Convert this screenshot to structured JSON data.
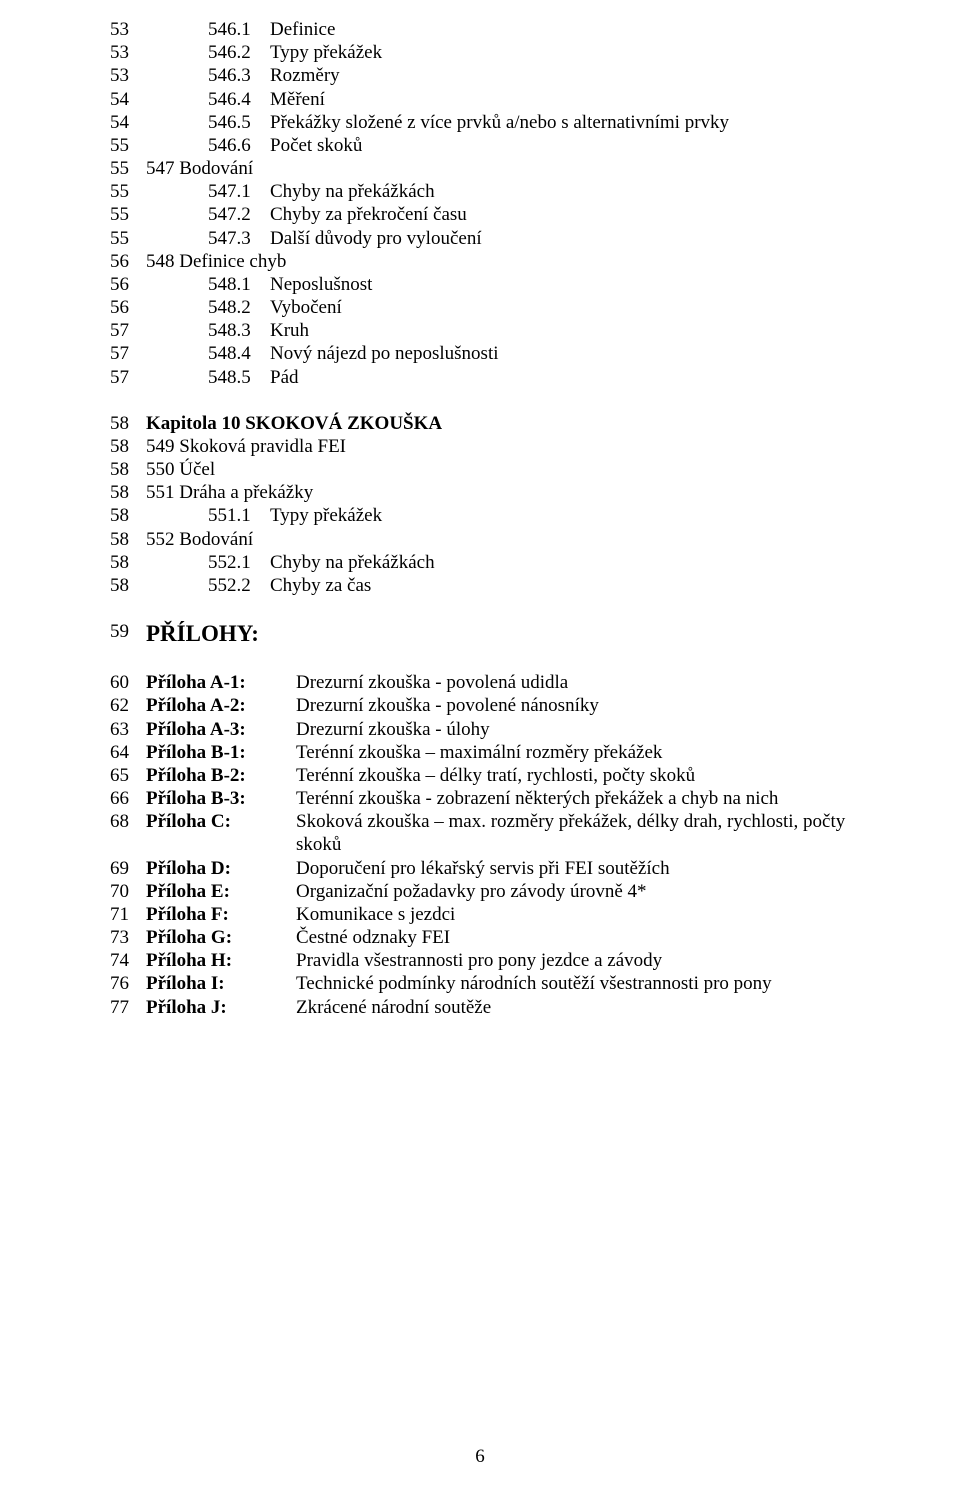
{
  "font": {
    "family": "Times New Roman",
    "size_pt": 14,
    "color": "#000000"
  },
  "background_color": "#ffffff",
  "section1": [
    {
      "pg": "53",
      "num": "546.1",
      "txt": "Definice"
    },
    {
      "pg": "53",
      "num": "546.2",
      "txt": "Typy překážek"
    },
    {
      "pg": "53",
      "num": "546.3",
      "txt": "Rozměry"
    },
    {
      "pg": "54",
      "num": "546.4",
      "txt": "Měření"
    },
    {
      "pg": "54",
      "num": "546.5",
      "txt": "Překážky složené z více prvků a/nebo s alternativními prvky"
    },
    {
      "pg": "55",
      "num": "546.6",
      "txt": "Počet skoků"
    },
    {
      "pg": "55",
      "num": "",
      "txt": "547 Bodování"
    },
    {
      "pg": "55",
      "num": "547.1",
      "txt": "Chyby na překážkách"
    },
    {
      "pg": "55",
      "num": "547.2",
      "txt": "Chyby za překročení času"
    },
    {
      "pg": "55",
      "num": "547.3",
      "txt": "Další důvody pro vyloučení"
    },
    {
      "pg": "56",
      "num": "",
      "txt": "548 Definice chyb"
    },
    {
      "pg": "56",
      "num": "548.1",
      "txt": "Neposlušnost"
    },
    {
      "pg": "56",
      "num": "548.2",
      "txt": "Vybočení"
    },
    {
      "pg": "57",
      "num": "548.3",
      "txt": "Kruh"
    },
    {
      "pg": "57",
      "num": "548.4",
      "txt": "Nový nájezd po neposlušnosti"
    },
    {
      "pg": "57",
      "num": "548.5",
      "txt": "Pád"
    }
  ],
  "chapterHeading": {
    "pg": "58",
    "txt": "Kapitola 10 SKOKOVÁ ZKOUŠKA"
  },
  "section2": [
    {
      "pg": "58",
      "num": "",
      "txt": "549 Skoková pravidla FEI"
    },
    {
      "pg": "58",
      "num": "",
      "txt": "550 Účel"
    },
    {
      "pg": "58",
      "num": "",
      "txt": "551 Dráha a překážky"
    },
    {
      "pg": "58",
      "num": "551.1",
      "txt": "Typy překážek"
    },
    {
      "pg": "58",
      "num": "",
      "txt": "552 Bodování"
    },
    {
      "pg": "58",
      "num": "552.1",
      "txt": "Chyby na překážkách"
    },
    {
      "pg": "58",
      "num": "552.2",
      "txt": "Chyby za čas"
    }
  ],
  "attachmentsHeading": {
    "pg": "59",
    "txt": "PŘÍLOHY:"
  },
  "appendices": [
    {
      "pg": "60",
      "label": "Příloha A-1",
      "colon": ":",
      "desc": "Drezurní zkouška - povolená udidla"
    },
    {
      "pg": "62",
      "label": "Příloha A-2:",
      "colon": "",
      "desc": "Drezurní zkouška - povolené nánosníky"
    },
    {
      "pg": "63",
      "label": "Příloha A-3:",
      "colon": "",
      "desc": "Drezurní zkouška - úlohy",
      "boldDesc": " "
    },
    {
      "pg": "64",
      "label": "Příloha B-1:",
      "colon": "",
      "desc": "Terénní zkouška – maximální rozměry překážek"
    },
    {
      "pg": "65",
      "label": "Příloha B-2:",
      "colon": "",
      "desc": "Terénní zkouška – délky tratí, rychlosti, počty skoků"
    },
    {
      "pg": "66",
      "label": "Příloha B-3:",
      "colon": "",
      "desc": "Terénní zkouška - zobrazení některých překážek a chyb na nich"
    },
    {
      "pg": "68",
      "label": "Příloha C:",
      "colon": "",
      "desc": "Skoková zkouška – max. rozměry překážek, délky drah, rychlosti, počty skoků"
    },
    {
      "pg": "69",
      "label": "Příloha D:",
      "colon": "",
      "desc": "Doporučení pro lékařský servis při FEI soutěžích"
    },
    {
      "pg": "70",
      "label": "Příloha E:",
      "colon": "",
      "desc": "Organizační požadavky pro závody úrovně 4*"
    },
    {
      "pg": "71",
      "label": "Příloha F:",
      "colon": "",
      "desc": "Komunikace s jezdci"
    },
    {
      "pg": "73",
      "label": "Příloha G:",
      "colon": "",
      "desc": "Čestné odznaky FEI"
    },
    {
      "pg": "74",
      "label": "Příloha H:",
      "colon": "",
      "desc": "Pravidla všestrannosti pro pony jezdce a závody"
    },
    {
      "pg": "76",
      "label": "Příloha I:",
      "colon": "",
      "desc": "Technické podmínky národních soutěží všestrannosti pro pony"
    },
    {
      "pg": "77",
      "label": "Příloha J:",
      "colon": "",
      "desc": "Zkrácené národní soutěže"
    }
  ],
  "pageNumber": "6"
}
